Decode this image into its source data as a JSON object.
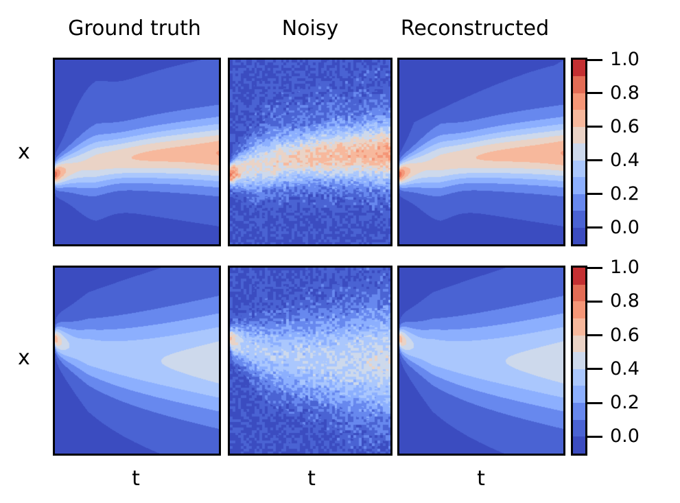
{
  "chart_data": {
    "type": "heatmap",
    "column_titles": [
      "Ground truth",
      "Noisy",
      "Reconstructed"
    ],
    "row_ylabel": "x",
    "xlabel": "t",
    "colormap": "coolwarm",
    "colorbar": {
      "levels": [
        -0.1,
        0.0,
        0.1,
        0.2,
        0.3,
        0.4,
        0.5,
        0.6,
        0.7,
        0.8,
        0.9,
        1.0
      ],
      "ticks": [
        "0.0",
        "0.2",
        "0.4",
        "0.6",
        "0.8",
        "1.0"
      ],
      "colors": [
        "#3b4cc0",
        "#4a63d3",
        "#6788ee",
        "#8caffe",
        "#aac7fd",
        "#cdd9ec",
        "#ead3c6",
        "#f7b89c",
        "#f59677",
        "#e36c55",
        "#c43032"
      ]
    },
    "rows": [
      {
        "peak_value": 0.85,
        "right_plume_value": 0.6
      },
      {
        "peak_value": 0.75,
        "right_plume_value": 0.4
      }
    ]
  }
}
